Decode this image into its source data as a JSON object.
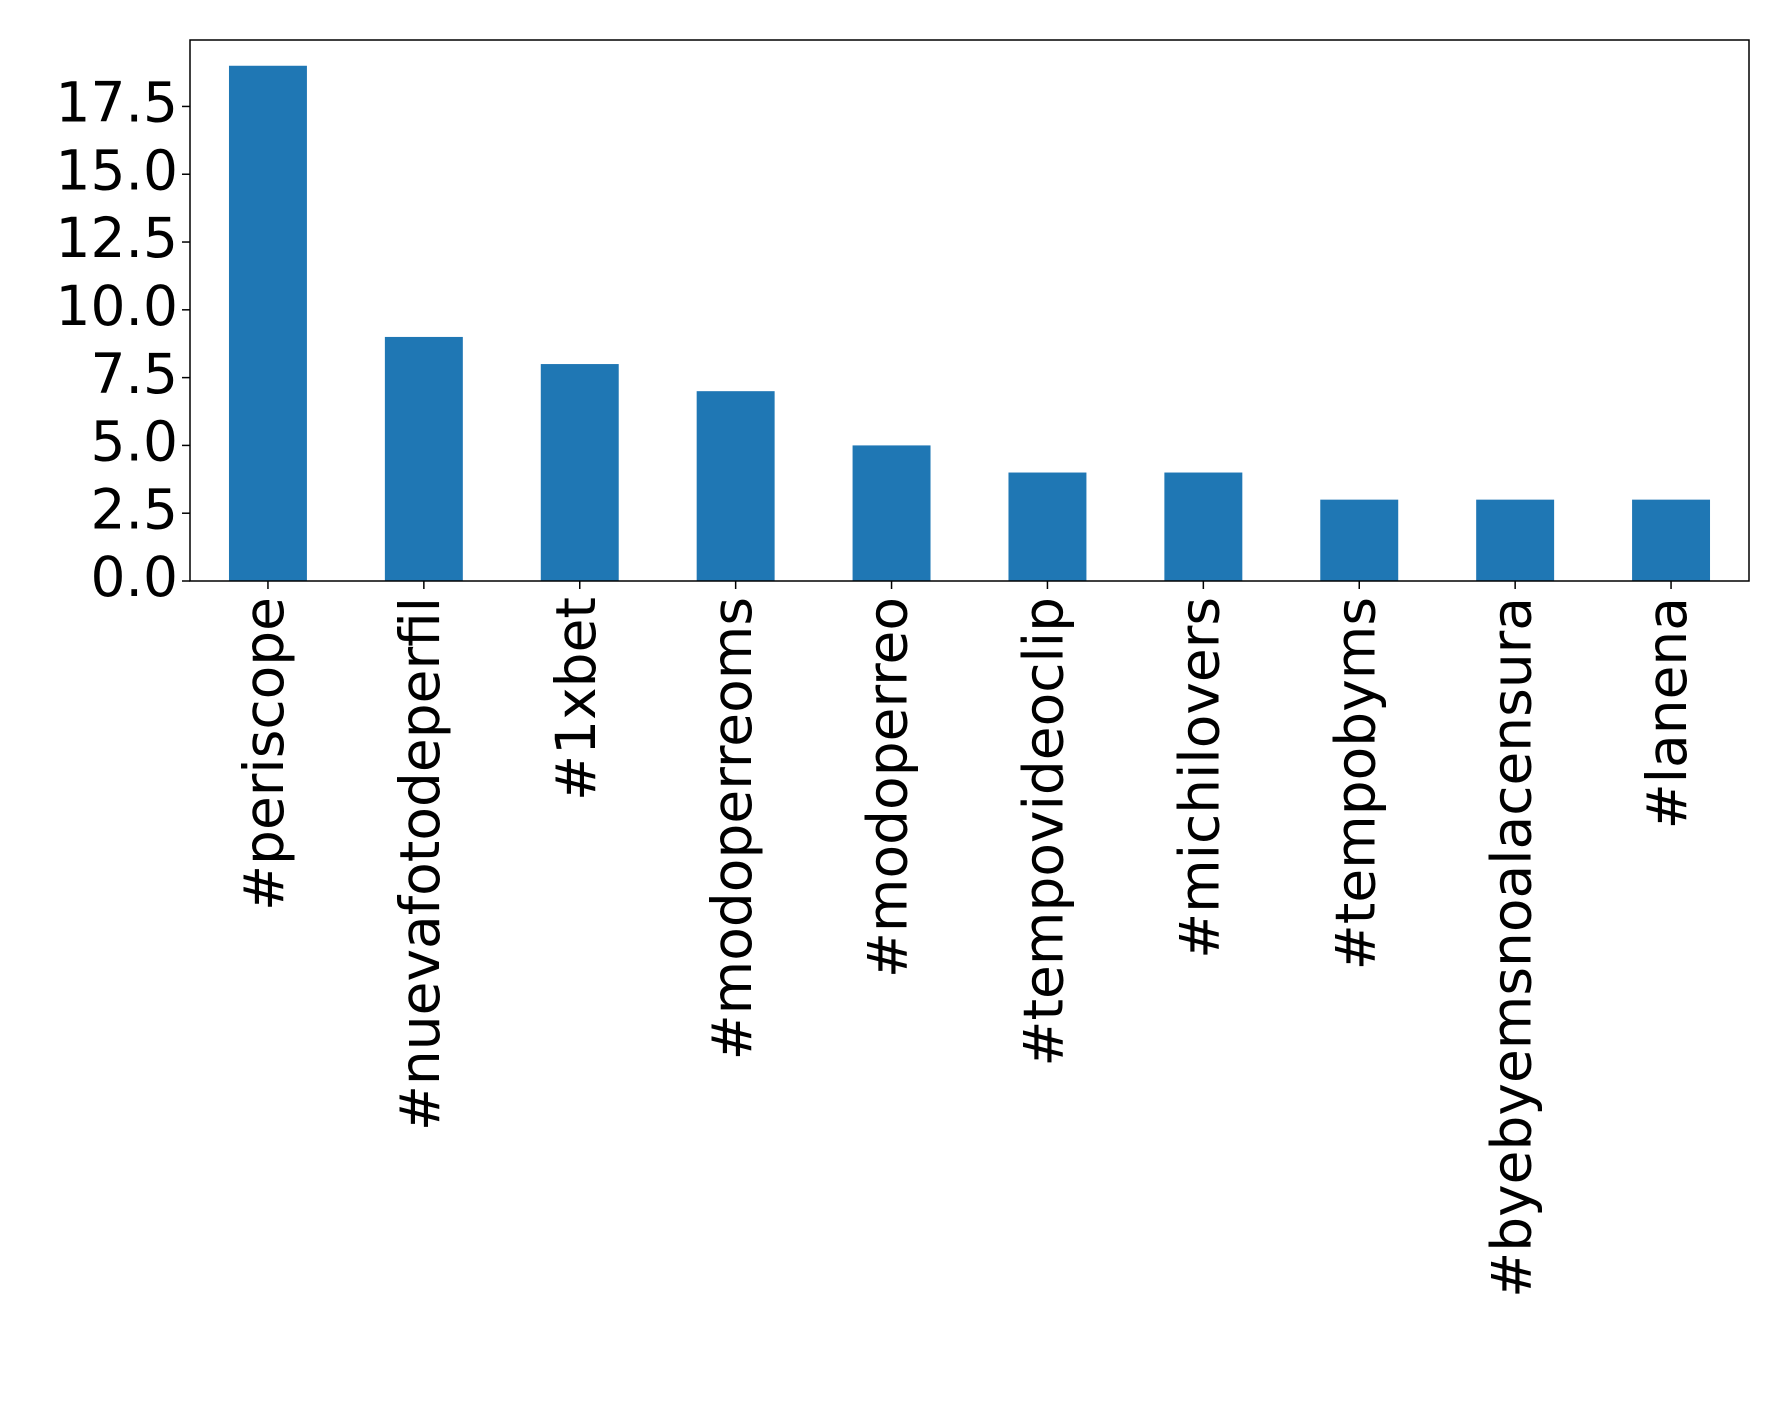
{
  "chart_data": {
    "type": "bar",
    "categories": [
      "#periscope",
      "#nuevafotodeperfil",
      "#1xbet",
      "#modoperreoms",
      "#modoperreo",
      "#tempovideoclip",
      "#michilovers",
      "#tempobyms",
      "#byebyemsnoalacensura",
      "#lanena"
    ],
    "values": [
      19,
      9,
      8,
      7,
      5,
      4,
      4,
      3,
      3,
      3
    ],
    "color": "#1f77b4",
    "ylim": [
      0,
      19.95
    ],
    "yticks": [
      {
        "value": 0,
        "label": "0.0"
      },
      2.5,
      {
        "value": 5,
        "label": "5.0"
      },
      7.5,
      {
        "value": 10,
        "label": "10.0"
      },
      12.5,
      {
        "value": 15,
        "label": "15.0"
      },
      17.5
    ],
    "grid": false
  }
}
